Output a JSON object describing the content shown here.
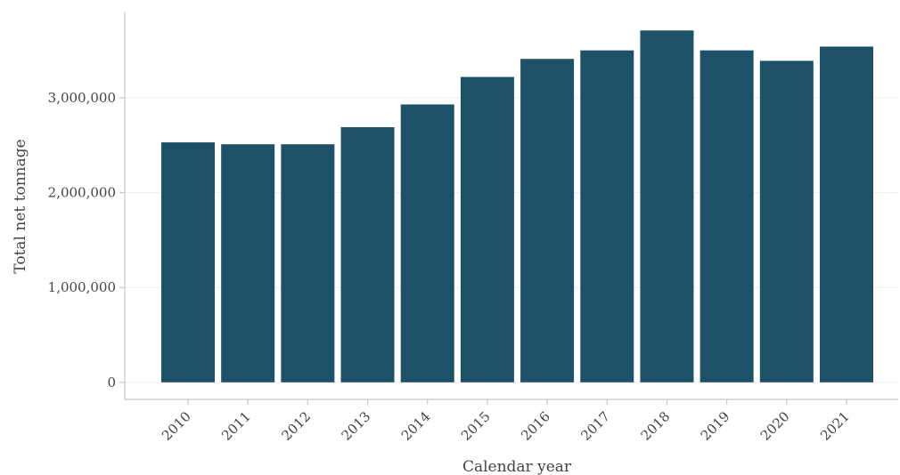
{
  "chart_data": {
    "type": "bar",
    "title": "",
    "xlabel": "Calendar year",
    "ylabel": "Total net tonnage",
    "categories": [
      "2010",
      "2011",
      "2012",
      "2013",
      "2014",
      "2015",
      "2016",
      "2017",
      "2018",
      "2019",
      "2020",
      "2021"
    ],
    "values": [
      2530000,
      2510000,
      2510000,
      2690000,
      2930000,
      3220000,
      3410000,
      3500000,
      3710000,
      3500000,
      3390000,
      3540000
    ],
    "ylim": [
      -180000,
      3900000
    ],
    "yticks": [
      0,
      1000000,
      2000000,
      3000000
    ],
    "ytick_labels": [
      "0",
      "1,000,000",
      "2,000,000",
      "3,000,000"
    ],
    "grid": true,
    "bar_color": "#1d5168",
    "legend": "none"
  }
}
